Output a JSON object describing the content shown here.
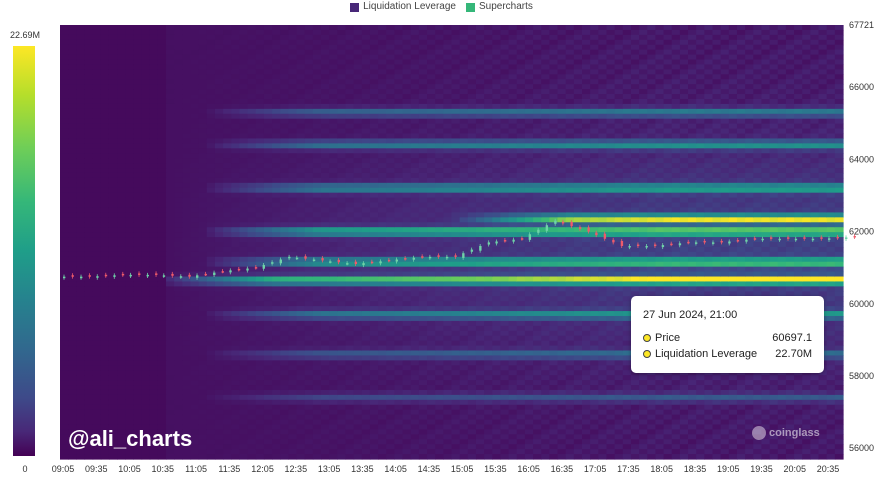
{
  "legend": {
    "items": [
      {
        "label": "Liquidation Leverage",
        "color": "#482878"
      },
      {
        "label": "Supercharts",
        "color": "#35b779"
      }
    ]
  },
  "colorbar": {
    "max_label": "22.69M",
    "min_label": "0"
  },
  "watermark": "@ali_charts",
  "brand": "coinglass",
  "tooltip": {
    "title": "27 Jun 2024, 21:00",
    "rows": [
      {
        "label": "Price",
        "value": "60697.1"
      },
      {
        "label": "Liquidation Leverage",
        "value": "22.70M"
      }
    ]
  },
  "chart_data": {
    "type": "heatmap",
    "x_ticks": [
      "09:05",
      "09:35",
      "10:05",
      "10:35",
      "11:05",
      "11:35",
      "12:05",
      "12:35",
      "13:05",
      "13:35",
      "14:05",
      "14:35",
      "15:05",
      "15:35",
      "16:05",
      "16:35",
      "17:05",
      "17:35",
      "18:05",
      "18:35",
      "19:05",
      "19:35",
      "20:05",
      "20:35"
    ],
    "y_ticks": [
      67721,
      66000,
      64000,
      62000,
      60000,
      58000,
      56000
    ],
    "ylim": [
      55700,
      67721
    ],
    "colorbar_range": [
      0,
      22690000
    ],
    "price_series": {
      "x": [
        "09:05",
        "09:35",
        "10:05",
        "10:35",
        "11:05",
        "11:35",
        "12:05",
        "12:35",
        "13:05",
        "13:35",
        "14:05",
        "14:35",
        "15:05",
        "15:35",
        "16:05",
        "16:35",
        "17:05",
        "17:35",
        "18:05",
        "18:35",
        "19:05",
        "19:35",
        "20:05",
        "20:35"
      ],
      "close": [
        60750,
        60800,
        60800,
        60750,
        60900,
        61000,
        61300,
        61200,
        61100,
        61200,
        61300,
        61300,
        61700,
        61800,
        62300,
        62000,
        61600,
        61600,
        61700,
        61700,
        61800,
        61800,
        61800,
        61850
      ]
    },
    "liquidation_bands": [
      {
        "price": 60650,
        "value_m": 22.7
      },
      {
        "price": 62350,
        "value_m": 20.5
      },
      {
        "price": 62000,
        "value_m": 18.0
      },
      {
        "price": 61150,
        "value_m": 16.0
      },
      {
        "price": 63200,
        "value_m": 12.0
      },
      {
        "price": 64400,
        "value_m": 9.5
      },
      {
        "price": 65300,
        "value_m": 7.5
      },
      {
        "price": 59700,
        "value_m": 10.0
      },
      {
        "price": 58600,
        "value_m": 6.0
      },
      {
        "price": 57400,
        "value_m": 4.0
      }
    ]
  }
}
